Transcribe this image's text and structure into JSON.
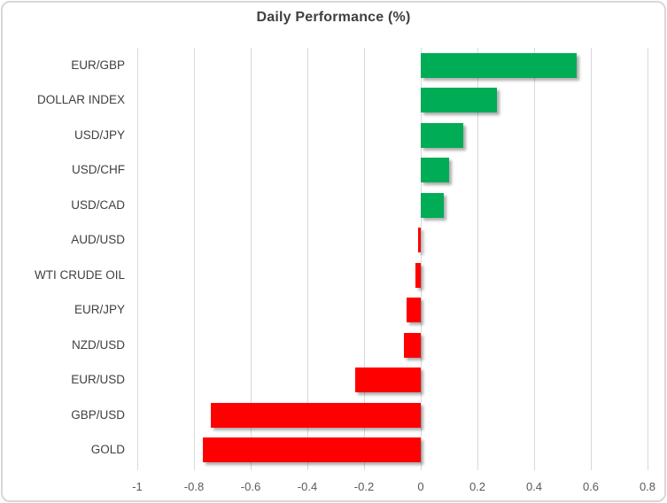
{
  "chart_data": {
    "type": "bar",
    "orientation": "horizontal",
    "title": "Daily Performance (%)",
    "categories": [
      "EUR/GBP",
      "DOLLAR INDEX",
      "USD/JPY",
      "USD/CHF",
      "USD/CAD",
      "AUD/USD",
      "WTI CRUDE OIL",
      "EUR/JPY",
      "NZD/USD",
      "EUR/USD",
      "GBP/USD",
      "GOLD"
    ],
    "values": [
      0.55,
      0.27,
      0.15,
      0.1,
      0.08,
      -0.01,
      -0.02,
      -0.05,
      -0.06,
      -0.23,
      -0.74,
      -0.77
    ],
    "xlim": [
      -1,
      0.8
    ],
    "xtick_labels": [
      "-1",
      "-0.8",
      "-0.6",
      "-0.4",
      "-0.2",
      "0",
      "0.2",
      "0.4",
      "0.6",
      "0.8"
    ],
    "xtick_values": [
      -1,
      -0.8,
      -0.6,
      -0.4,
      -0.2,
      0,
      0.2,
      0.4,
      0.6,
      0.8
    ],
    "grid": "vertical-only",
    "legend": "none",
    "colors": {
      "positive_bar": "#00AC55",
      "negative_bar": "#FF0000",
      "gridline": "#D9D9D9",
      "title_text": "#404040",
      "category_text": "#404040",
      "axis_text": "#595959",
      "frame_border": "#D7D7D7",
      "background": "#FFFFFF"
    }
  }
}
